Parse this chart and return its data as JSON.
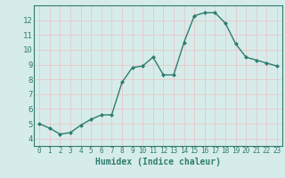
{
  "x": [
    0,
    1,
    2,
    3,
    4,
    5,
    6,
    7,
    8,
    9,
    10,
    11,
    12,
    13,
    14,
    15,
    16,
    17,
    18,
    19,
    20,
    21,
    22,
    23
  ],
  "y": [
    5.0,
    4.7,
    4.3,
    4.4,
    4.9,
    5.3,
    5.6,
    5.6,
    7.8,
    8.8,
    8.9,
    9.5,
    8.3,
    8.3,
    10.5,
    12.3,
    12.5,
    12.5,
    11.8,
    10.4,
    9.5,
    9.3,
    9.1,
    8.9
  ],
  "line_color": "#2e7d6e",
  "marker": "D",
  "marker_size": 2.0,
  "linewidth": 1.0,
  "xlabel": "Humidex (Indice chaleur)",
  "xlim": [
    -0.5,
    23.5
  ],
  "ylim": [
    3.5,
    13.0
  ],
  "yticks": [
    4,
    5,
    6,
    7,
    8,
    9,
    10,
    11,
    12
  ],
  "xticks": [
    0,
    1,
    2,
    3,
    4,
    5,
    6,
    7,
    8,
    9,
    10,
    11,
    12,
    13,
    14,
    15,
    16,
    17,
    18,
    19,
    20,
    21,
    22,
    23
  ],
  "background_color": "#d6ecea",
  "grid_color": "#b8d8d5",
  "line_border_color": "#2e7d6e",
  "xlabel_fontsize": 7,
  "tick_fontsize": 6.5
}
